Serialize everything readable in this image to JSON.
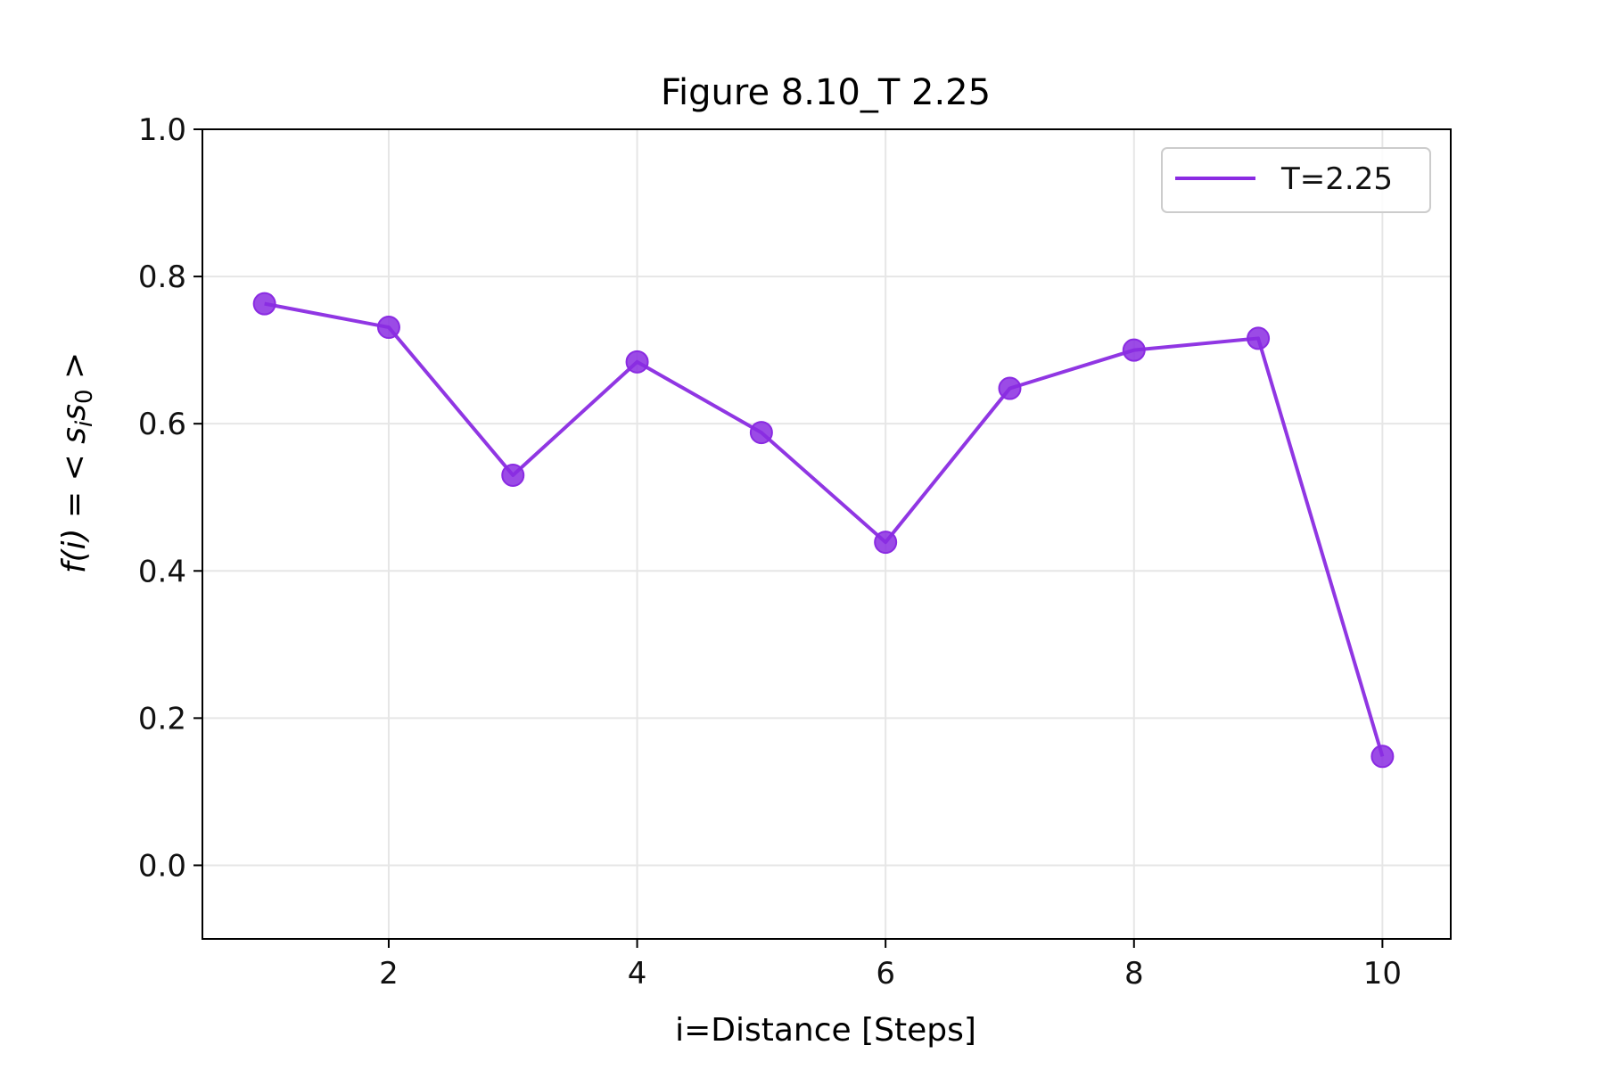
{
  "chart_data": {
    "type": "line",
    "title": "Figure 8.10_T 2.25",
    "xlabel": "i=Distance [Steps]",
    "ylabel": "f(i) = < s_i s_0 >",
    "ylabel_parts": {
      "lhs": "f(i)",
      "eq": " = < ",
      "s1": "s",
      "sub1": "i",
      "s2": "s",
      "sub2": "0",
      "close": " >"
    },
    "xlim": [
      0.5,
      10.55
    ],
    "ylim": [
      -0.1,
      1.0
    ],
    "xticks": [
      2,
      4,
      6,
      8,
      10
    ],
    "yticks": [
      0.0,
      0.2,
      0.4,
      0.6,
      0.8,
      1.0
    ],
    "xtick_labels": [
      "2",
      "4",
      "6",
      "8",
      "10"
    ],
    "ytick_labels": [
      "0.0",
      "0.2",
      "0.4",
      "0.6",
      "0.8",
      "1.0"
    ],
    "grid": true,
    "legend_position": "top-right",
    "series": [
      {
        "name": "T=2.25",
        "color": "#8a2be2",
        "x": [
          1,
          2,
          3,
          4,
          5,
          6,
          7,
          8,
          9,
          10
        ],
        "y": [
          0.763,
          0.731,
          0.53,
          0.684,
          0.588,
          0.439,
          0.648,
          0.7,
          0.716,
          0.148
        ]
      }
    ]
  }
}
